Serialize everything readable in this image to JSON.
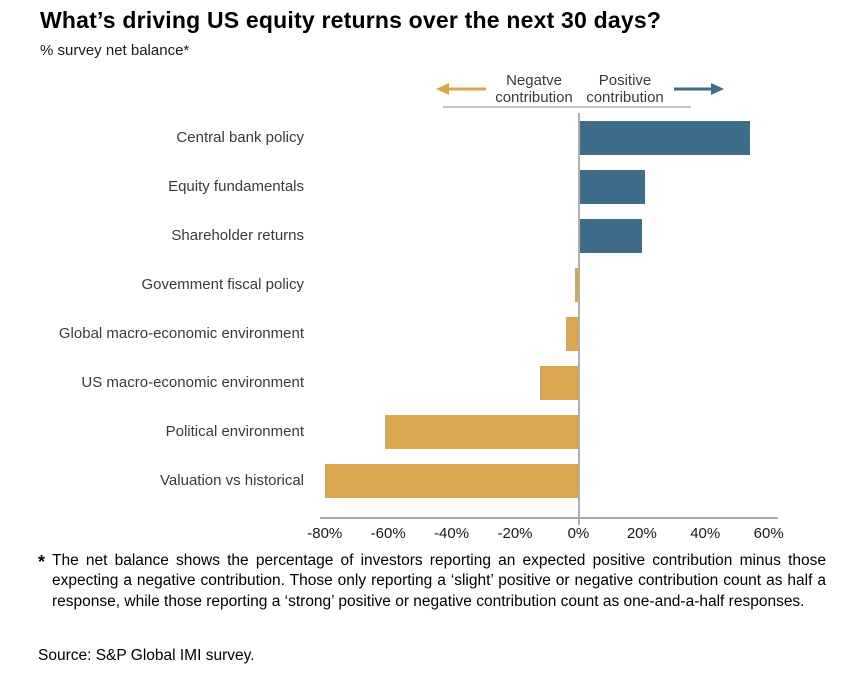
{
  "header": {
    "title": "What’s driving US equity returns over the next 30 days?",
    "subtitle": "% survey net balance*"
  },
  "legend": {
    "negative_label": "Negatve contribution",
    "positive_label": "Positive contribution",
    "negative_color": "#d9a84e",
    "positive_color": "#3e6d8a"
  },
  "chart_data": {
    "type": "bar",
    "orientation": "horizontal",
    "categories": [
      "Central bank policy",
      "Equity fundamentals",
      "Shareholder returns",
      "Govemment fiscal policy",
      "Global macro-economic environment",
      "US macro-economic environment",
      "Political environment",
      "Valuation vs historical"
    ],
    "values": [
      54,
      21,
      20,
      -1,
      -4,
      -12,
      -61,
      -80
    ],
    "positive_color": "#3e6d8a",
    "negative_color": "#d9a84e",
    "xlim": [
      -80,
      60
    ],
    "x_tick_values": [
      -80,
      -60,
      -40,
      -20,
      0,
      20,
      40,
      60
    ],
    "x_ticks": [
      "-80%",
      "-60%",
      "-40%",
      "-20%",
      "0%",
      "20%",
      "40%",
      "60%"
    ],
    "title": "What’s driving US equity returns over the next 30 days?",
    "xlabel": "",
    "ylabel": "% survey net balance*",
    "grid": false,
    "legend_position": "top-right"
  },
  "footnote": {
    "marker": "*",
    "text": "The net balance shows the percentage of investors reporting an expected positive contribution minus those expecting a negative contribution. Those only reporting a ‘slight’ positive or negative contribution count as half a response, while those reporting a ‘strong’ positive or negative contribution count as one-and-a-half responses."
  },
  "source": "Source: S&P Global IMI survey."
}
